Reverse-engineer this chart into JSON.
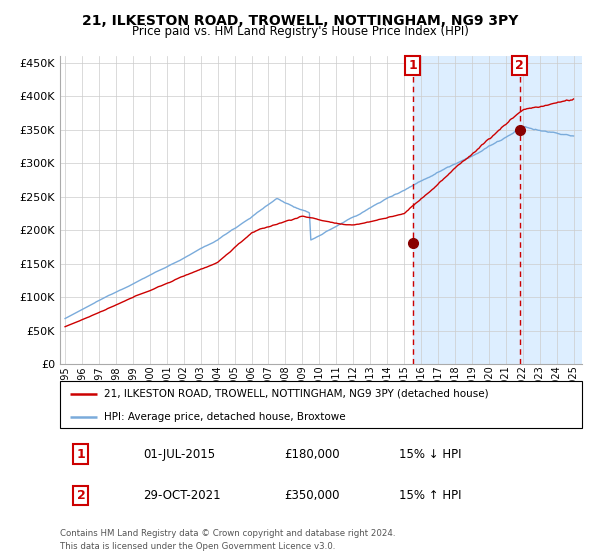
{
  "title": "21, ILKESTON ROAD, TROWELL, NOTTINGHAM, NG9 3PY",
  "subtitle": "Price paid vs. HM Land Registry's House Price Index (HPI)",
  "legend_line1": "21, ILKESTON ROAD, TROWELL, NOTTINGHAM, NG9 3PY (detached house)",
  "legend_line2": "HPI: Average price, detached house, Broxtowe",
  "annotation1_label": "1",
  "annotation1_date": "01-JUL-2015",
  "annotation1_price": "£180,000",
  "annotation1_hpi": "15% ↓ HPI",
  "annotation2_label": "2",
  "annotation2_date": "29-OCT-2021",
  "annotation2_price": "£350,000",
  "annotation2_hpi": "15% ↑ HPI",
  "footnote1": "Contains HM Land Registry data © Crown copyright and database right 2024.",
  "footnote2": "This data is licensed under the Open Government Licence v3.0.",
  "hpi_color": "#7aabdb",
  "price_color": "#cc0000",
  "dot_color": "#880000",
  "vline_color": "#cc0000",
  "bg_highlight_color": "#ddeeff",
  "annotation_box_color": "#cc0000",
  "ylim_min": 0,
  "ylim_max": 460000,
  "start_year": 1995,
  "end_year": 2025,
  "sale1_year": 2015.5,
  "sale1_value": 180000,
  "sale2_year": 2021.83,
  "sale2_value": 350000
}
